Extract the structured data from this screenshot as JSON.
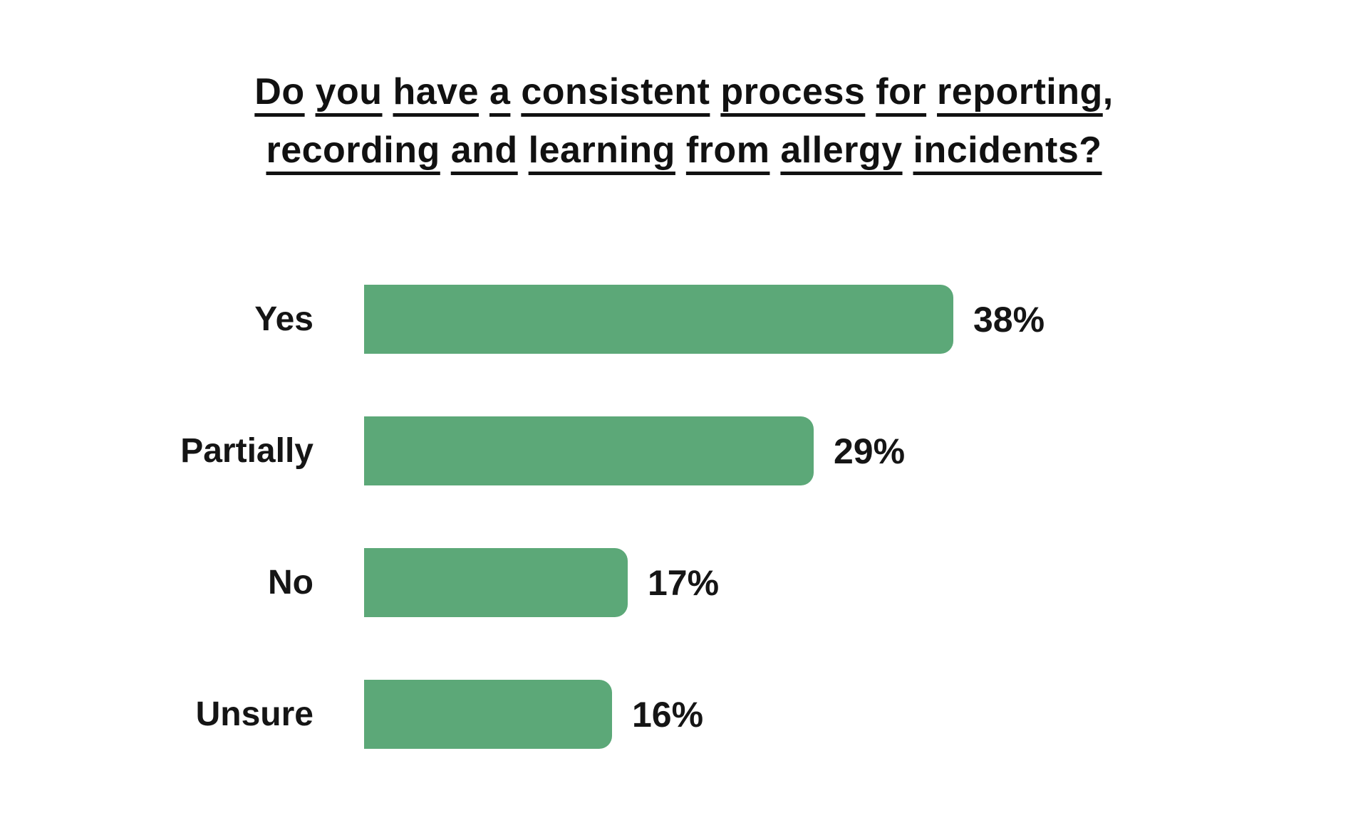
{
  "title": {
    "line1": "Do you have a consistent process for reporting",
    "line1_suffix": ",",
    "line2": "recording and learning from allergy incidents?"
  },
  "chart_data": {
    "type": "bar",
    "orientation": "horizontal",
    "title": "Do you have a consistent process for reporting, recording and learning from allergy incidents?",
    "categories": [
      "Yes",
      "Partially",
      "No",
      "Unsure"
    ],
    "values": [
      38,
      29,
      17,
      16
    ],
    "value_labels": [
      "38%",
      "29%",
      "17%",
      "16%"
    ],
    "xlabel": "",
    "ylabel": "",
    "xlim": [
      0,
      40
    ],
    "grid": false,
    "legend": false,
    "bar_color": "#5CA878",
    "text_color": "#151515",
    "background_color": "#ffffff"
  }
}
